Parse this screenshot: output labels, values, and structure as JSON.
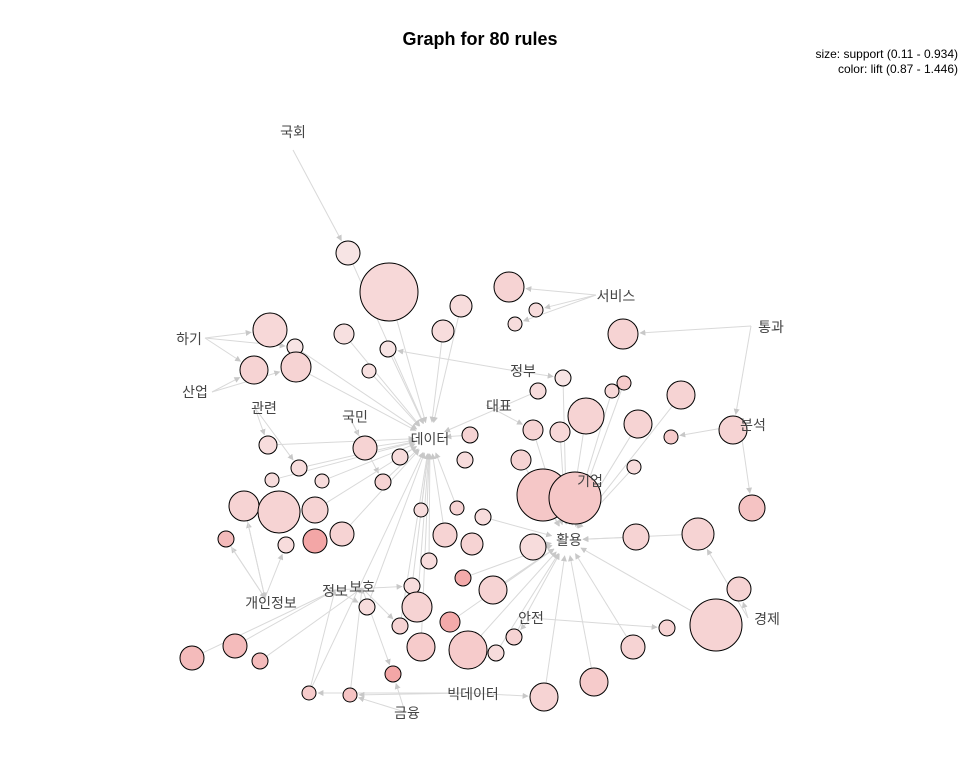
{
  "title": "Graph for 80 rules",
  "legend": {
    "size": "size: support (0.11 - 0.934)",
    "color": "color: lift (0.87 - 1.446)"
  },
  "colors": {
    "edge": "#d9d9d9",
    "node_low": "#f8ecec",
    "node_high": "#f29a9a"
  },
  "items": [
    {
      "name": "국회"
    },
    {
      "name": "서비스"
    },
    {
      "name": "통과"
    },
    {
      "name": "하기"
    },
    {
      "name": "정부"
    },
    {
      "name": "산업"
    },
    {
      "name": "대표"
    },
    {
      "name": "관련"
    },
    {
      "name": "국민"
    },
    {
      "name": "분석"
    },
    {
      "name": "데이터"
    },
    {
      "name": "기업"
    },
    {
      "name": "활용"
    },
    {
      "name": "개인정보"
    },
    {
      "name": "정보"
    },
    {
      "name": "보호"
    },
    {
      "name": "경제"
    },
    {
      "name": "안전"
    },
    {
      "name": "빅데이터"
    },
    {
      "name": "금융"
    }
  ]
}
